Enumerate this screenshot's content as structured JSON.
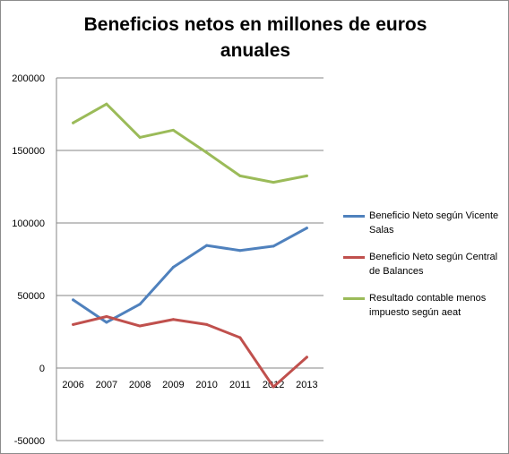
{
  "chart_data": {
    "type": "line",
    "title": "Beneficios netos en millones de euros anuales",
    "xlabel": "",
    "ylabel": "",
    "categories": [
      "2006",
      "2007",
      "2008",
      "2009",
      "2010",
      "2011",
      "2012",
      "2013"
    ],
    "ylim": [
      -50000,
      200000
    ],
    "yticks": [
      -50000,
      0,
      50000,
      100000,
      150000,
      200000
    ],
    "ytick_labels": [
      "-50000",
      "0",
      "50000",
      "100000",
      "150000",
      "200000"
    ],
    "grid": "horizontal",
    "legend_position": "right",
    "series": [
      {
        "name": "Beneficio Neto según Vicente Salas",
        "color": "#4f81bd",
        "values": [
          47000,
          31500,
          44000,
          69500,
          84500,
          81000,
          84000,
          96500
        ]
      },
      {
        "name": "Beneficio Neto según Central de Balances",
        "color": "#c0504d",
        "values": [
          30000,
          35500,
          29000,
          33500,
          30000,
          21000,
          -13000,
          7500
        ]
      },
      {
        "name": "Resultado contable menos impuesto según aeat",
        "color": "#9bbb59",
        "values": [
          169000,
          182000,
          159000,
          164000,
          148500,
          132500,
          128000,
          132500
        ]
      }
    ]
  }
}
